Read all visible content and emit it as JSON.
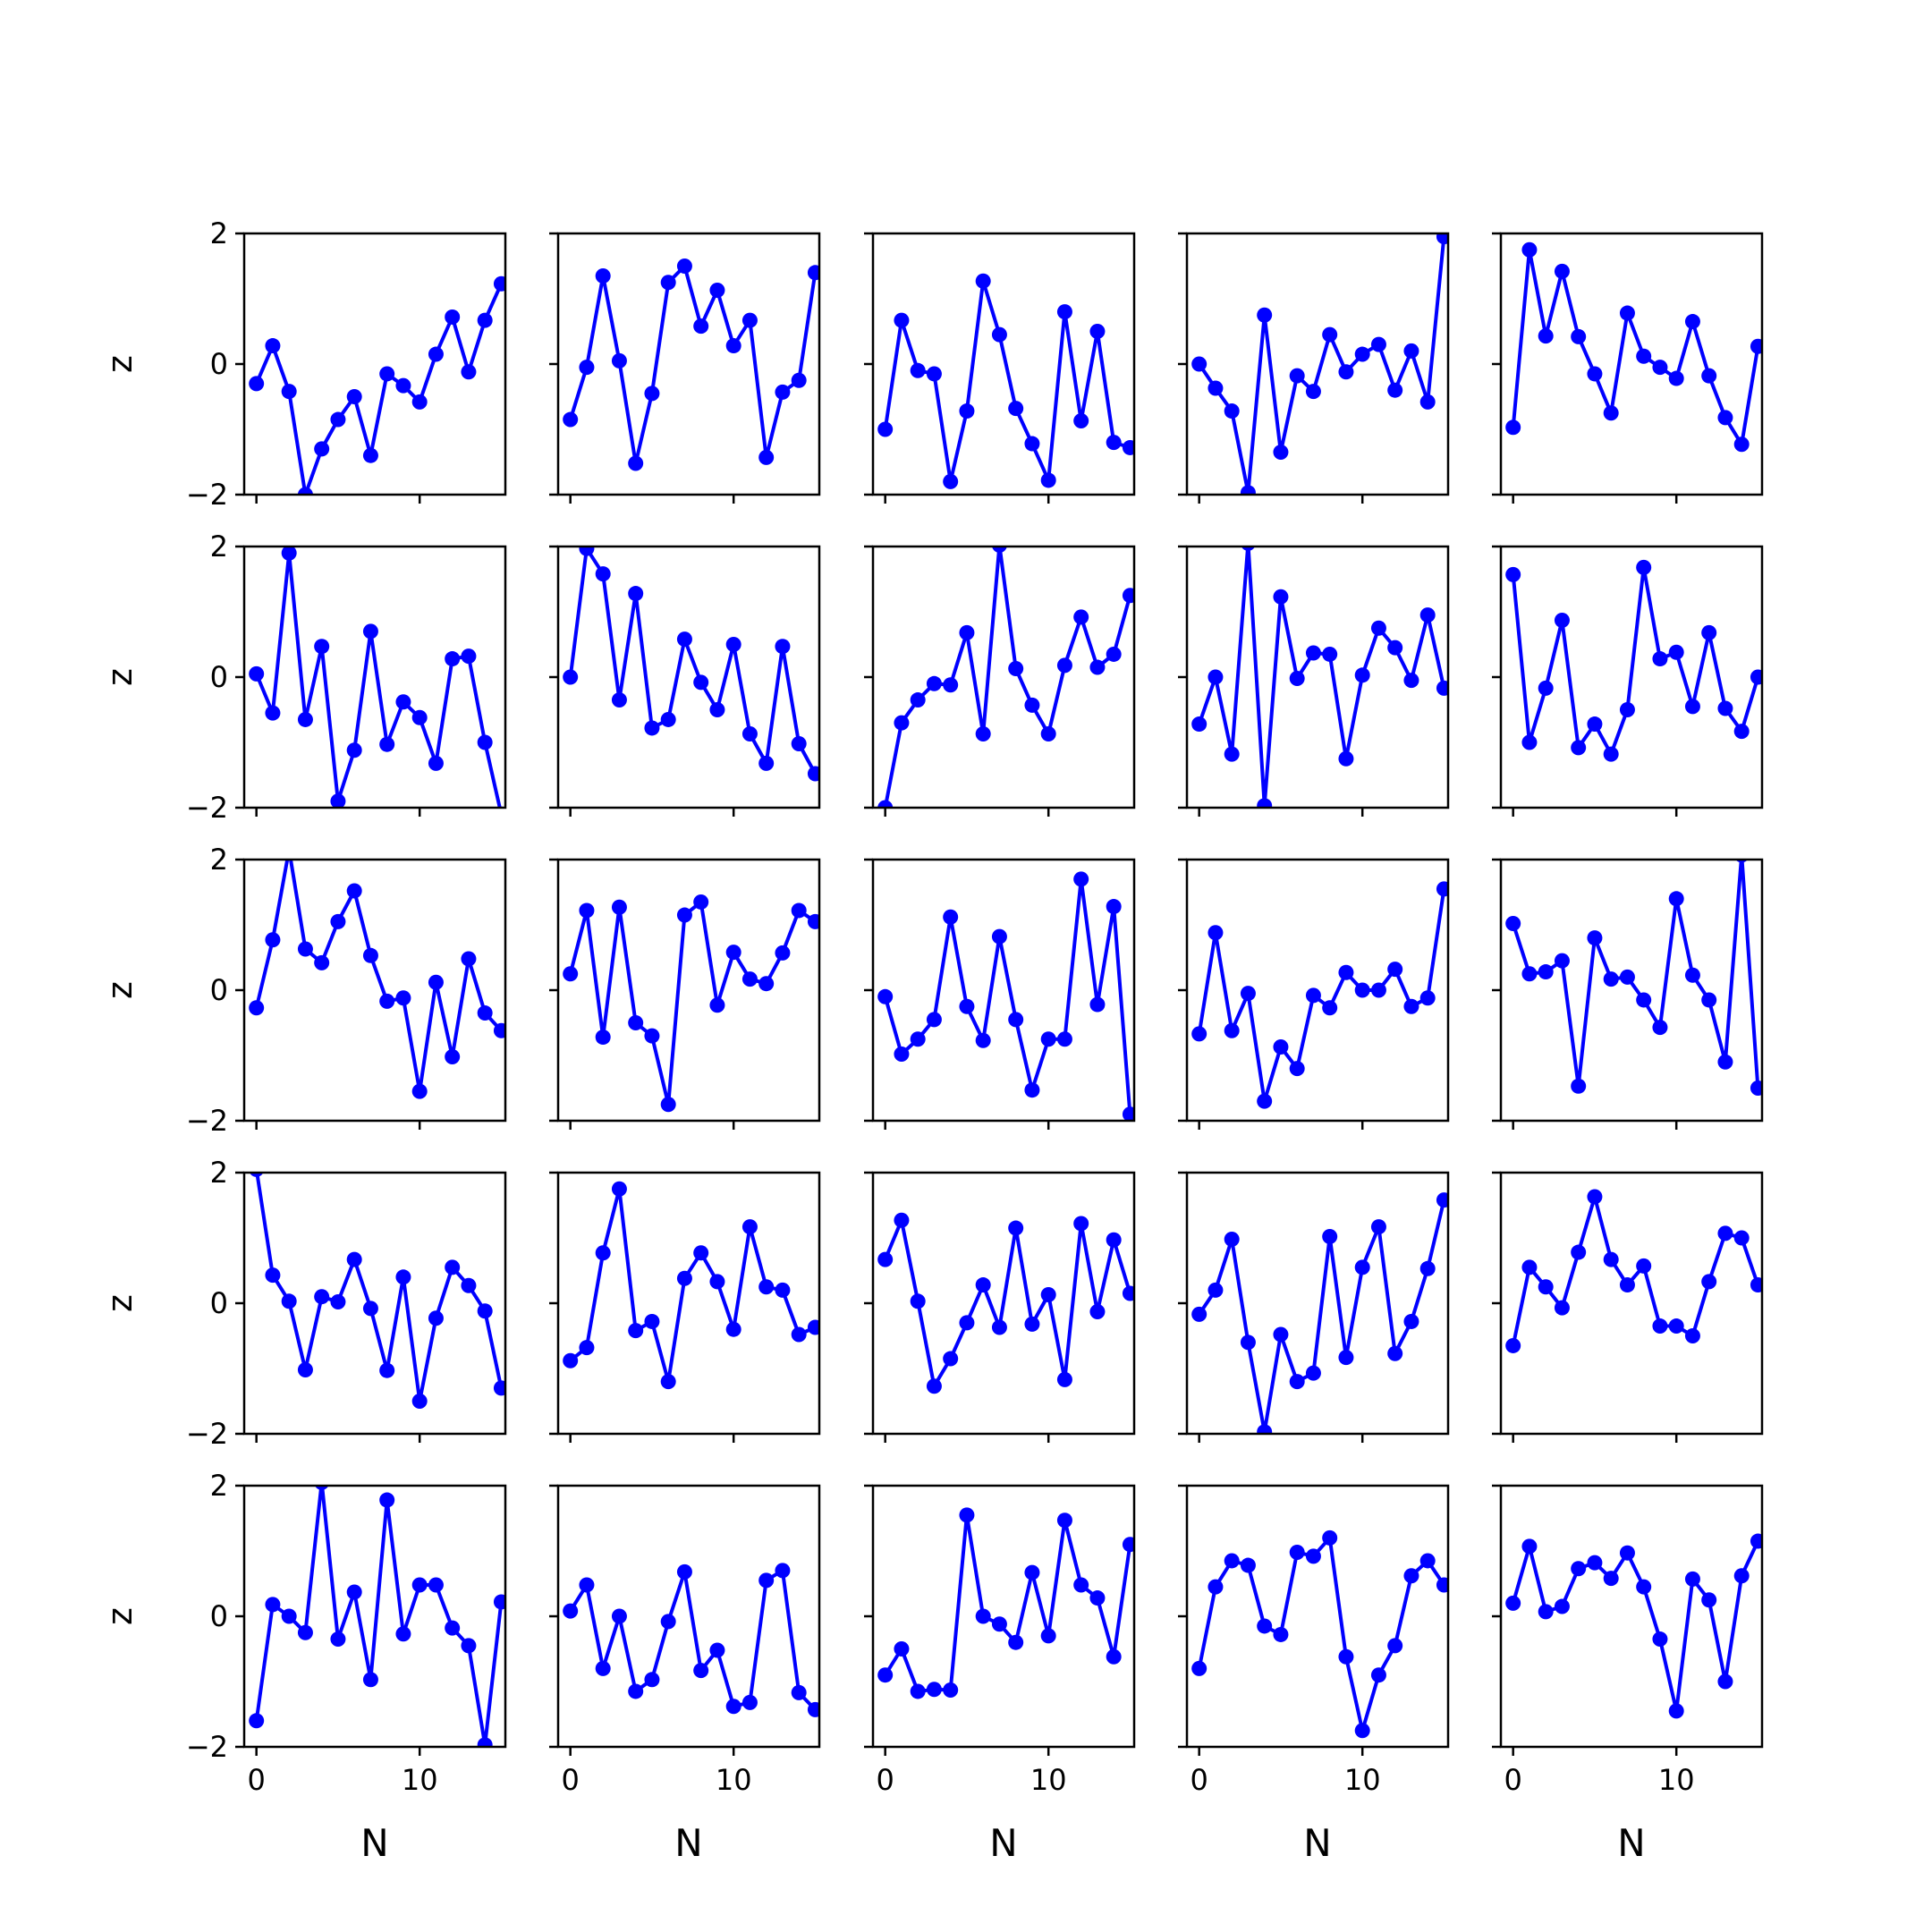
{
  "style": {
    "line_color": "#0000ff",
    "axis_color": "#000000",
    "background": "#ffffff"
  },
  "chart_data": {
    "type": "line",
    "layout": "5x5 grid of subplots",
    "xlabel": "N",
    "ylabel": "z",
    "xlim": [
      -0.75,
      15.25
    ],
    "ylim": [
      -2,
      2
    ],
    "x": [
      0,
      1,
      2,
      3,
      4,
      5,
      6,
      7,
      8,
      9,
      10,
      11,
      12,
      13,
      14,
      15
    ],
    "xticks": [
      0,
      10
    ],
    "xtick_labels": [
      "0",
      "10"
    ],
    "yticks": [
      -2,
      0,
      2
    ],
    "ytick_labels": [
      "−2",
      "0",
      "2"
    ],
    "series_marker": "filled circle",
    "panels": [
      [
        -0.3,
        0.28,
        -0.42,
        -2.0,
        -1.3,
        -0.85,
        -0.5,
        -1.4,
        -0.15,
        -0.33,
        -0.58,
        0.15,
        0.72,
        -0.12,
        0.67,
        1.23
      ],
      [
        -0.85,
        -0.05,
        1.35,
        0.05,
        -1.52,
        -0.45,
        1.25,
        1.5,
        0.58,
        1.13,
        0.28,
        0.67,
        -1.43,
        -0.43,
        -0.25,
        1.4
      ],
      [
        -1.0,
        0.67,
        -0.1,
        -0.15,
        -1.8,
        -0.72,
        1.27,
        0.45,
        -0.68,
        -1.22,
        -1.78,
        0.8,
        -0.87,
        0.5,
        -1.2,
        -1.28
      ],
      [
        0.0,
        -0.37,
        -0.72,
        -1.97,
        0.75,
        -1.35,
        -0.18,
        -0.42,
        0.45,
        -0.12,
        0.15,
        0.3,
        -0.4,
        0.2,
        -0.58,
        1.95
      ],
      [
        -0.97,
        1.75,
        0.43,
        1.42,
        0.42,
        -0.15,
        -0.75,
        0.78,
        0.12,
        -0.05,
        -0.22,
        0.65,
        -0.18,
        -0.82,
        -1.23,
        0.27
      ],
      [
        0.05,
        -0.55,
        1.9,
        -0.65,
        0.47,
        -1.9,
        -1.12,
        0.7,
        -1.03,
        -0.38,
        -0.62,
        -1.32,
        0.28,
        0.32,
        -1.0,
        -2.1
      ],
      [
        0.0,
        1.97,
        1.58,
        -0.35,
        1.28,
        -0.78,
        -0.65,
        0.58,
        -0.08,
        -0.5,
        0.5,
        -0.87,
        -1.32,
        0.47,
        -1.02,
        -1.48
      ],
      [
        -2.0,
        -0.7,
        -0.35,
        -0.1,
        -0.12,
        0.68,
        -0.87,
        2.02,
        0.13,
        -0.43,
        -0.87,
        0.18,
        0.92,
        0.15,
        0.35,
        1.25
      ],
      [
        -0.72,
        0.0,
        -1.18,
        2.05,
        -1.97,
        1.23,
        -0.02,
        0.37,
        0.35,
        -1.25,
        0.03,
        0.75,
        0.45,
        -0.05,
        0.95,
        -0.17
      ],
      [
        1.57,
        -1.0,
        -0.17,
        0.87,
        -1.08,
        -0.72,
        -1.18,
        -0.5,
        1.68,
        0.28,
        0.38,
        -0.45,
        0.68,
        -0.48,
        -0.83,
        0.0
      ],
      [
        -0.27,
        0.77,
        2.15,
        0.63,
        0.42,
        1.05,
        1.52,
        0.53,
        -0.17,
        -0.12,
        -1.55,
        0.12,
        -1.02,
        0.48,
        -0.35,
        -0.62
      ],
      [
        0.25,
        1.22,
        -0.72,
        1.27,
        -0.5,
        -0.7,
        -1.75,
        1.15,
        1.35,
        -0.23,
        0.58,
        0.17,
        0.1,
        0.57,
        1.22,
        1.05
      ],
      [
        -0.1,
        -0.98,
        -0.75,
        -0.45,
        1.12,
        -0.25,
        -0.77,
        0.82,
        -0.45,
        -1.53,
        -0.75,
        -0.75,
        1.7,
        -0.22,
        1.28,
        -1.9
      ],
      [
        -0.67,
        0.88,
        -0.62,
        -0.05,
        -1.7,
        -0.87,
        -1.2,
        -0.08,
        -0.27,
        0.27,
        0.0,
        0.0,
        0.32,
        -0.25,
        -0.12,
        1.55
      ],
      [
        1.02,
        0.25,
        0.28,
        0.45,
        -1.47,
        0.8,
        0.17,
        0.2,
        -0.15,
        -0.57,
        1.4,
        0.23,
        -0.15,
        -1.1,
        2.07,
        -1.5
      ],
      [
        2.05,
        0.43,
        0.03,
        -1.02,
        0.1,
        0.02,
        0.67,
        -0.08,
        -1.03,
        0.4,
        -1.5,
        -0.23,
        0.55,
        0.27,
        -0.12,
        -1.3
      ],
      [
        -0.88,
        -0.68,
        0.77,
        1.75,
        -0.42,
        -0.28,
        -1.2,
        0.38,
        0.77,
        0.33,
        -0.4,
        1.17,
        0.25,
        0.2,
        -0.48,
        -0.37
      ],
      [
        0.67,
        1.27,
        0.03,
        -1.27,
        -0.85,
        -0.3,
        0.28,
        -0.37,
        1.15,
        -0.32,
        0.13,
        -1.17,
        1.22,
        -0.13,
        0.97,
        0.15
      ],
      [
        -0.17,
        0.2,
        0.98,
        -0.6,
        -1.97,
        -0.48,
        -1.2,
        -1.07,
        1.02,
        -0.83,
        0.55,
        1.17,
        -0.77,
        -0.28,
        0.53,
        1.58
      ],
      [
        -0.65,
        0.55,
        0.25,
        -0.07,
        0.78,
        1.63,
        0.67,
        0.28,
        0.57,
        -0.35,
        -0.35,
        -0.5,
        0.33,
        1.07,
        1.0,
        0.28
      ],
      [
        -1.6,
        0.18,
        0.0,
        -0.25,
        2.05,
        -0.35,
        0.37,
        -0.97,
        1.78,
        -0.27,
        0.48,
        0.48,
        -0.18,
        -0.45,
        -1.97,
        0.22
      ],
      [
        0.08,
        0.48,
        -0.8,
        0.0,
        -1.15,
        -0.97,
        -0.08,
        0.68,
        -0.83,
        -0.52,
        -1.38,
        -1.32,
        0.55,
        0.7,
        -1.17,
        -1.43
      ],
      [
        -0.9,
        -0.5,
        -1.15,
        -1.12,
        -1.13,
        1.55,
        0.0,
        -0.12,
        -0.4,
        0.67,
        -0.3,
        1.47,
        0.48,
        0.28,
        -0.62,
        1.1
      ],
      [
        -0.8,
        0.45,
        0.85,
        0.78,
        -0.15,
        -0.28,
        0.98,
        0.92,
        1.2,
        -0.62,
        -1.75,
        -0.9,
        -0.45,
        0.62,
        0.85,
        0.48
      ],
      [
        0.2,
        1.07,
        0.07,
        0.15,
        0.73,
        0.82,
        0.58,
        0.97,
        0.45,
        -0.35,
        -1.45,
        0.57,
        0.25,
        -1.0,
        0.62,
        1.15
      ]
    ]
  }
}
